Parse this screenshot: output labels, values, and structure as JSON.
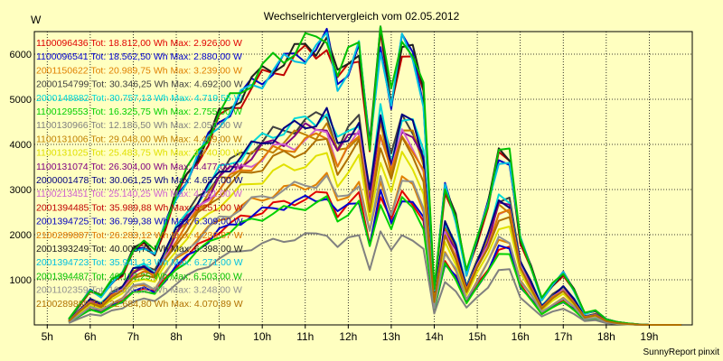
{
  "chart_data": {
    "type": "line",
    "title": "Wechselrichtervergleich vom 02.05.2012",
    "ylabel": "W",
    "footer": "SunnyReport pinxit",
    "ylim": [
      0,
      6500
    ],
    "yticks": [
      1000,
      2000,
      3000,
      4000,
      5000,
      6000
    ],
    "xlim": [
      4.7,
      20
    ],
    "xticks": [
      {
        "v": 5,
        "label": "5h"
      },
      {
        "v": 6,
        "label": "6h"
      },
      {
        "v": 7,
        "label": "7h"
      },
      {
        "v": 8,
        "label": "8h"
      },
      {
        "v": 9,
        "label": "9h"
      },
      {
        "v": 10,
        "label": "10h"
      },
      {
        "v": 11,
        "label": "11h"
      },
      {
        "v": 12,
        "label": "12h"
      },
      {
        "v": 13,
        "label": "13h"
      },
      {
        "v": 14,
        "label": "14h"
      },
      {
        "v": 15,
        "label": "15h"
      },
      {
        "v": 16,
        "label": "16h"
      },
      {
        "v": 17,
        "label": "17h"
      },
      {
        "v": 18,
        "label": "18h"
      },
      {
        "v": 19,
        "label": "19h"
      }
    ],
    "grid": true,
    "legend_position": "top-left",
    "x": [
      5.5,
      5.75,
      6,
      6.25,
      6.5,
      6.75,
      7,
      7.25,
      7.5,
      7.75,
      8,
      8.25,
      8.5,
      8.75,
      9,
      9.25,
      9.5,
      9.75,
      10,
      10.25,
      10.5,
      10.75,
      11,
      11.25,
      11.5,
      11.75,
      12,
      12.25,
      12.5,
      12.75,
      13,
      13.25,
      13.5,
      13.75,
      14,
      14.25,
      14.5,
      14.75,
      15,
      15.25,
      15.5,
      15.75,
      16,
      16.25,
      16.5,
      16.75,
      17,
      17.25,
      17.5,
      17.75,
      18,
      18.25,
      18.5,
      18.75,
      19,
      19.25,
      19.5,
      19.75
    ],
    "shape": [
      0.02,
      0.07,
      0.12,
      0.1,
      0.15,
      0.18,
      0.26,
      0.28,
      0.25,
      0.35,
      0.45,
      0.52,
      0.59,
      0.65,
      0.72,
      0.76,
      0.8,
      0.84,
      0.87,
      0.9,
      0.92,
      0.94,
      0.96,
      0.97,
      1.0,
      0.85,
      0.91,
      0.97,
      0.62,
      1.0,
      0.78,
      0.99,
      0.94,
      0.8,
      0.12,
      0.48,
      0.37,
      0.18,
      0.3,
      0.42,
      0.59,
      0.58,
      0.3,
      0.2,
      0.09,
      0.14,
      0.18,
      0.12,
      0.04,
      0.05,
      0.02,
      0.01,
      0.005,
      0.002,
      0,
      0,
      0,
      0
    ],
    "series": [
      {
        "name": "1100096436",
        "text": "1100096436 Tot: 18.812,00 Wh Max: 2.926,00 W",
        "color": "#e00000",
        "peak": 2926
      },
      {
        "name": "1100096541",
        "text": "1100096541 Tot: 18.562,50 Wh Max: 2.880,00 W",
        "color": "#0000d0",
        "peak": 2880
      },
      {
        "name": "2001150622",
        "text": "2001150622 Tot: 20.989,75 Wh Max: 3.239,00 W",
        "color": "#e08000",
        "peak": 3239
      },
      {
        "name": "2000154799",
        "text": "2000154799 Tot: 30.346,25 Wh Max: 4.692,00 W",
        "color": "#404040",
        "peak": 4692
      },
      {
        "name": "2000148882",
        "text": "2000148882 Tot: 30.757,13 Wh Max: 4.719,55 W",
        "color": "#00d8d8",
        "peak": 4719
      },
      {
        "name": "1100129553",
        "text": "1100129553 Tot: 16.325,75 Wh Max: 2.755,00 W",
        "color": "#00d000",
        "peak": 2755
      },
      {
        "name": "1100130966",
        "text": "1100130966 Tot: 12.186,50 Wh Max: 2.050,00 W",
        "color": "#808080",
        "peak": 2050
      },
      {
        "name": "1100131006",
        "text": "1100131006 Tot: 29.048,00 Wh Max: 4.409,00 W",
        "color": "#c08000",
        "peak": 4409
      },
      {
        "name": "1100131025",
        "text": "1100131025 Tot: 25.483,75 Wh Max: 3.740,00 W",
        "color": "#e0e000",
        "peak": 3740
      },
      {
        "name": "1100131074",
        "text": "1100131074 Tot: 26.304,00 Wh Max: 4.477,00 W",
        "color": "#800080",
        "peak": 4477
      },
      {
        "name": "2000001478",
        "text": "2000001478 Tot: 30.061,25 Wh Max: 4.657,00 W",
        "color": "#000080",
        "peak": 4657
      },
      {
        "name": "1100213451",
        "text": "1100213451 Tot: 25.140,25 Wh Max: 4.291,00 W",
        "color": "#d060d0",
        "peak": 4291
      },
      {
        "name": "2001394485",
        "text": "2001394485 Tot: 35.989,88 Wh Max: 6.251,00 W",
        "color": "#c00000",
        "peak": 6251
      },
      {
        "name": "2001394725",
        "text": "2001394725 Tot: 36.799,38 Wh Max: 6.309,00 W",
        "color": "#0000c0",
        "peak": 6309
      },
      {
        "name": "2100289887",
        "text": "2100289887 Tot: 26.283,12 Wh Max: 4.236,87 W",
        "color": "#e07800",
        "peak": 4236
      },
      {
        "name": "2001393249",
        "text": "2001393249 Tot: 40.005,75 Wh Max: 6.398,00 W",
        "color": "#202020",
        "peak": 6398
      },
      {
        "name": "2001394723",
        "text": "2001394723 Tot: 35.941,13 Wh Max: 6.271,00 W",
        "color": "#00c0e0",
        "peak": 6271
      },
      {
        "name": "2001394487",
        "text": "2001394487 Tot: 40.112,25 Wh Max: 6.503,00 W",
        "color": "#00c000",
        "peak": 6503
      },
      {
        "name": "2001102359",
        "text": "2001102359 Tot: 19.086,00 Wh Max: 3.248,00 W",
        "color": "#909090",
        "peak": 3248
      },
      {
        "name": "2100289888",
        "text": "2100289888 Tot: 22.684,80 Wh Max: 4.070,89 W",
        "color": "#b07000",
        "peak": 4070
      }
    ]
  }
}
